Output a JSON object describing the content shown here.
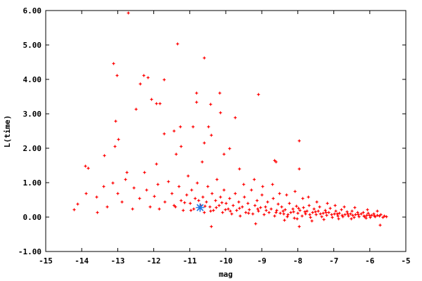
{
  "chart_data": {
    "type": "scatter",
    "title": "",
    "xlabel": "mag",
    "ylabel": "L(time)",
    "xlim": [
      -15,
      -5
    ],
    "ylim": [
      -1,
      6
    ],
    "xticks": [
      "-15",
      "-14",
      "-13",
      "-12",
      "-11",
      "-10",
      "-9",
      "-8",
      "-7",
      "-6",
      "-5"
    ],
    "yticks": [
      "-1.00",
      "0.00",
      "1.00",
      "2.00",
      "3.00",
      "4.00",
      "5.00",
      "6.00"
    ],
    "grid": false,
    "legend": "none",
    "colors": {
      "points": "#ff0000",
      "highlight": "#1e78e6",
      "axes": "#000000"
    },
    "series": [
      {
        "marker": "plus",
        "color": "#ff0000",
        "points": [
          [
            -12.71,
            5.94
          ],
          [
            -13.12,
            4.47
          ],
          [
            -13.03,
            4.12
          ],
          [
            -12.38,
            3.88
          ],
          [
            -11.35,
            5.04
          ],
          [
            -10.61,
            4.63
          ],
          [
            -12.29,
            4.12
          ],
          [
            -12.17,
            4.06
          ],
          [
            -11.72,
            4.0
          ],
          [
            -10.18,
            3.61
          ],
          [
            -9.1,
            3.57
          ],
          [
            -10.82,
            3.61
          ],
          [
            -10.82,
            3.35
          ],
          [
            -10.43,
            3.29
          ],
          [
            -12.5,
            3.14
          ],
          [
            -12.07,
            3.43
          ],
          [
            -11.93,
            3.31
          ],
          [
            -11.84,
            3.31
          ],
          [
            -10.16,
            3.04
          ],
          [
            -9.75,
            2.9
          ],
          [
            -11.45,
            2.51
          ],
          [
            -13.07,
            2.8
          ],
          [
            -10.92,
            2.63
          ],
          [
            -11.27,
            2.63
          ],
          [
            -13.09,
            2.06
          ],
          [
            -12.99,
            2.27
          ],
          [
            -13.38,
            1.8
          ],
          [
            -13.83,
            1.43
          ],
          [
            -7.97,
            2.22
          ],
          [
            -8.65,
            1.65
          ],
          [
            -7.97,
            1.41
          ],
          [
            -13.14,
            1.0
          ],
          [
            -14.22,
            0.22
          ],
          [
            -14.12,
            0.39
          ],
          [
            -13.89,
            0.69
          ],
          [
            -13.57,
            0.14
          ],
          [
            -12.75,
            1.31
          ],
          [
            -12.27,
            1.31
          ],
          [
            -11.93,
            1.55
          ],
          [
            -11.39,
            1.84
          ],
          [
            -11.72,
            2.43
          ],
          [
            -11.25,
            2.06
          ],
          [
            -10.06,
            1.84
          ],
          [
            -9.9,
            2.0
          ],
          [
            -10.66,
            1.61
          ],
          [
            -10.41,
            2.39
          ],
          [
            -10.49,
            2.63
          ],
          [
            -10.61,
            2.16
          ],
          [
            -9.63,
            1.41
          ],
          [
            -8.61,
            1.61
          ],
          [
            -10.41,
            -0.27
          ],
          [
            -9.18,
            -0.18
          ],
          [
            -7.97,
            -0.27
          ],
          [
            -5.72,
            -0.22
          ],
          [
            -13.9,
            1.5
          ],
          [
            -13.6,
            0.6
          ],
          [
            -13.4,
            0.9
          ],
          [
            -13.3,
            0.3
          ],
          [
            -13.0,
            0.7
          ],
          [
            -12.9,
            0.45
          ],
          [
            -12.8,
            1.1
          ],
          [
            -12.6,
            0.25
          ],
          [
            -12.55,
            0.85
          ],
          [
            -12.4,
            0.55
          ],
          [
            -12.2,
            0.8
          ],
          [
            -12.1,
            0.3
          ],
          [
            -12.0,
            0.62
          ],
          [
            -11.9,
            0.95
          ],
          [
            -11.85,
            0.25
          ],
          [
            -11.7,
            0.45
          ],
          [
            -11.6,
            1.05
          ],
          [
            -11.5,
            0.7
          ],
          [
            -11.45,
            0.35
          ],
          [
            -11.3,
            0.9
          ],
          [
            -11.25,
            0.5
          ],
          [
            -11.2,
            0.2
          ],
          [
            -11.1,
            0.65
          ],
          [
            -11.05,
            1.2
          ],
          [
            -11.0,
            0.4
          ],
          [
            -10.95,
            0.8
          ],
          [
            -10.9,
            0.25
          ],
          [
            -10.85,
            0.55
          ],
          [
            -10.8,
            1.0
          ],
          [
            -10.7,
            0.35
          ],
          [
            -10.65,
            0.6
          ],
          [
            -10.6,
            0.15
          ],
          [
            -10.55,
            0.45
          ],
          [
            -10.5,
            0.9
          ],
          [
            -10.45,
            0.3
          ],
          [
            -10.4,
            0.7
          ],
          [
            -10.35,
            0.2
          ],
          [
            -10.3,
            0.5
          ],
          [
            -10.25,
            1.1
          ],
          [
            -10.2,
            0.35
          ],
          [
            -10.15,
            0.6
          ],
          [
            -10.1,
            0.15
          ],
          [
            -10.05,
            0.8
          ],
          [
            -10.0,
            0.4
          ],
          [
            -11.4,
            0.3
          ],
          [
            -11.15,
            0.42
          ],
          [
            -10.98,
            0.2
          ],
          [
            -10.77,
            0.48
          ],
          [
            -10.58,
            0.32
          ],
          [
            -10.42,
            0.18
          ],
          [
            -10.28,
            0.28
          ],
          [
            -10.12,
            0.42
          ],
          [
            -10.02,
            0.22
          ],
          [
            -9.95,
            0.25
          ],
          [
            -9.9,
            0.55
          ],
          [
            -9.85,
            0.1
          ],
          [
            -9.8,
            0.35
          ],
          [
            -9.75,
            0.7
          ],
          [
            -9.7,
            0.2
          ],
          [
            -9.65,
            0.45
          ],
          [
            -9.6,
            0.05
          ],
          [
            -9.55,
            0.3
          ],
          [
            -9.5,
            0.6
          ],
          [
            -9.45,
            0.15
          ],
          [
            -9.4,
            0.4
          ],
          [
            -9.35,
            0.22
          ],
          [
            -9.3,
            0.8
          ],
          [
            -9.25,
            0.1
          ],
          [
            -9.2,
            0.35
          ],
          [
            -9.15,
            0.5
          ],
          [
            -9.1,
            0.18
          ],
          [
            -9.05,
            0.28
          ],
          [
            -9.0,
            0.65
          ],
          [
            -8.95,
            0.08
          ],
          [
            -8.9,
            0.3
          ],
          [
            -8.85,
            0.45
          ],
          [
            -8.8,
            0.15
          ],
          [
            -8.75,
            0.25
          ],
          [
            -8.7,
            0.55
          ],
          [
            -8.65,
            0.05
          ],
          [
            -8.6,
            0.2
          ],
          [
            -8.55,
            0.38
          ],
          [
            -8.5,
            0.12
          ],
          [
            -9.88,
            0.18
          ],
          [
            -9.62,
            0.26
          ],
          [
            -9.38,
            0.12
          ],
          [
            -9.12,
            0.24
          ],
          [
            -8.88,
            0.2
          ],
          [
            -8.62,
            0.14
          ],
          [
            -8.45,
            0.3
          ],
          [
            -8.4,
            0.1
          ],
          [
            -8.35,
            0.22
          ],
          [
            -8.3,
            0.02
          ],
          [
            -8.25,
            0.4
          ],
          [
            -8.2,
            0.15
          ],
          [
            -8.15,
            0.25
          ],
          [
            -8.1,
            -0.02
          ],
          [
            -8.05,
            0.33
          ],
          [
            -8.0,
            0.12
          ],
          [
            -7.95,
            0.2
          ],
          [
            -7.9,
            0.05
          ],
          [
            -7.85,
            0.28
          ],
          [
            -7.8,
            0.1
          ],
          [
            -7.75,
            0.18
          ],
          [
            -7.7,
            0.35
          ],
          [
            -7.65,
            0.0
          ],
          [
            -7.6,
            0.14
          ],
          [
            -7.55,
            0.24
          ],
          [
            -7.5,
            0.08
          ],
          [
            -7.45,
            0.18
          ],
          [
            -7.4,
            0.3
          ],
          [
            -7.35,
            0.02
          ],
          [
            -7.3,
            0.12
          ],
          [
            -7.25,
            0.2
          ],
          [
            -7.2,
            0.06
          ],
          [
            -7.15,
            0.15
          ],
          [
            -7.1,
            0.26
          ],
          [
            -7.05,
            0.0
          ],
          [
            -7.0,
            0.1
          ],
          [
            -6.95,
            0.18
          ],
          [
            -6.9,
            0.04
          ],
          [
            -6.85,
            0.13
          ],
          [
            -6.8,
            0.22
          ],
          [
            -6.75,
            0.02
          ],
          [
            -6.7,
            0.09
          ],
          [
            -6.65,
            0.16
          ],
          [
            -6.6,
            0.04
          ],
          [
            -6.55,
            0.11
          ],
          [
            -6.5,
            0.18
          ],
          [
            -6.45,
            0.0
          ],
          [
            -6.4,
            0.08
          ],
          [
            -6.35,
            0.14
          ],
          [
            -6.3,
            0.03
          ],
          [
            -6.25,
            0.1
          ],
          [
            -6.2,
            0.15
          ],
          [
            -6.15,
            0.02
          ],
          [
            -6.1,
            0.07
          ],
          [
            -6.05,
            0.12
          ],
          [
            -6.0,
            0.0
          ],
          [
            -5.95,
            0.06
          ],
          [
            -5.9,
            0.1
          ],
          [
            -5.85,
            0.02
          ],
          [
            -5.8,
            0.07
          ],
          [
            -5.75,
            0.04
          ],
          [
            -5.7,
            0.08
          ],
          [
            -5.65,
            0.01
          ],
          [
            -5.6,
            0.05
          ],
          [
            -5.55,
            0.03
          ],
          [
            -8.42,
            0.18
          ],
          [
            -8.28,
            0.08
          ],
          [
            -8.12,
            0.16
          ],
          [
            -7.98,
            0.26
          ],
          [
            -7.82,
            0.16
          ],
          [
            -7.68,
            0.08
          ],
          [
            -7.52,
            0.16
          ],
          [
            -7.38,
            0.1
          ],
          [
            -7.22,
            0.14
          ],
          [
            -7.08,
            0.08
          ],
          [
            -6.92,
            0.1
          ],
          [
            -6.78,
            0.06
          ],
          [
            -6.62,
            0.1
          ],
          [
            -6.48,
            0.06
          ],
          [
            -6.32,
            0.08
          ],
          [
            -6.18,
            0.05
          ],
          [
            -6.02,
            0.06
          ],
          [
            -5.88,
            0.05
          ],
          [
            -8.38,
            -0.08
          ],
          [
            -8.02,
            -0.05
          ],
          [
            -7.62,
            -0.1
          ],
          [
            -7.28,
            -0.06
          ],
          [
            -6.88,
            -0.05
          ],
          [
            -6.52,
            -0.04
          ],
          [
            -6.12,
            -0.03
          ],
          [
            -9.52,
            0.95
          ],
          [
            -9.22,
            1.1
          ],
          [
            -8.98,
            0.9
          ],
          [
            -8.72,
            0.95
          ],
          [
            -8.52,
            0.7
          ],
          [
            -8.32,
            0.65
          ],
          [
            -8.08,
            0.75
          ],
          [
            -7.88,
            0.55
          ],
          [
            -7.72,
            0.6
          ],
          [
            -7.48,
            0.45
          ],
          [
            -7.18,
            0.4
          ],
          [
            -6.98,
            0.35
          ],
          [
            -6.72,
            0.3
          ],
          [
            -6.42,
            0.28
          ],
          [
            -6.08,
            0.22
          ],
          [
            -5.8,
            0.18
          ]
        ]
      },
      {
        "marker": "star",
        "color": "#1e78e6",
        "points": [
          [
            -10.72,
            0.28
          ]
        ]
      }
    ]
  }
}
